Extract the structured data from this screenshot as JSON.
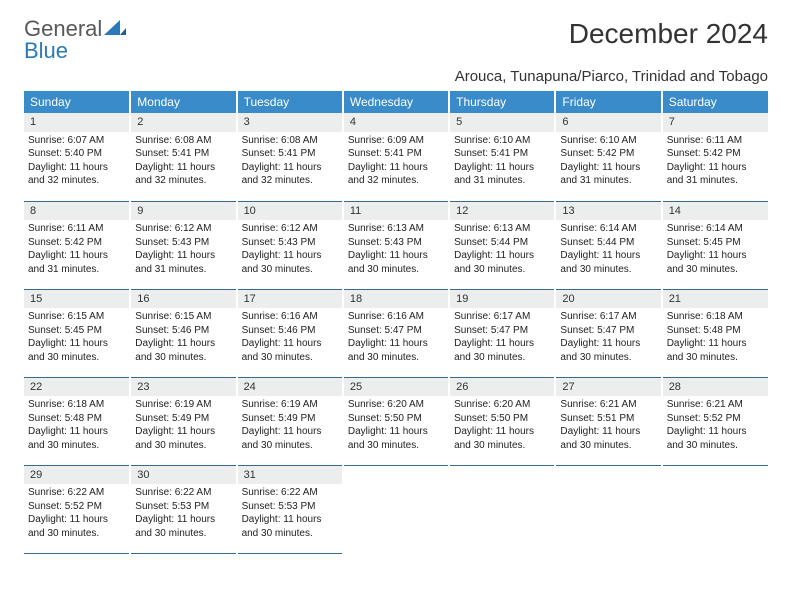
{
  "logo": {
    "word1": "General",
    "word2": "Blue"
  },
  "title": "December 2024",
  "location": "Arouca, Tunapuna/Piarco, Trinidad and Tobago",
  "header_bg": "#3a8bc9",
  "daynum_bg": "#eceded",
  "rule_color": "#3a6a94",
  "weekdays": [
    "Sunday",
    "Monday",
    "Tuesday",
    "Wednesday",
    "Thursday",
    "Friday",
    "Saturday"
  ],
  "days": [
    {
      "n": "1",
      "sunrise": "Sunrise: 6:07 AM",
      "sunset": "Sunset: 5:40 PM",
      "day1": "Daylight: 11 hours",
      "day2": "and 32 minutes."
    },
    {
      "n": "2",
      "sunrise": "Sunrise: 6:08 AM",
      "sunset": "Sunset: 5:41 PM",
      "day1": "Daylight: 11 hours",
      "day2": "and 32 minutes."
    },
    {
      "n": "3",
      "sunrise": "Sunrise: 6:08 AM",
      "sunset": "Sunset: 5:41 PM",
      "day1": "Daylight: 11 hours",
      "day2": "and 32 minutes."
    },
    {
      "n": "4",
      "sunrise": "Sunrise: 6:09 AM",
      "sunset": "Sunset: 5:41 PM",
      "day1": "Daylight: 11 hours",
      "day2": "and 32 minutes."
    },
    {
      "n": "5",
      "sunrise": "Sunrise: 6:10 AM",
      "sunset": "Sunset: 5:41 PM",
      "day1": "Daylight: 11 hours",
      "day2": "and 31 minutes."
    },
    {
      "n": "6",
      "sunrise": "Sunrise: 6:10 AM",
      "sunset": "Sunset: 5:42 PM",
      "day1": "Daylight: 11 hours",
      "day2": "and 31 minutes."
    },
    {
      "n": "7",
      "sunrise": "Sunrise: 6:11 AM",
      "sunset": "Sunset: 5:42 PM",
      "day1": "Daylight: 11 hours",
      "day2": "and 31 minutes."
    },
    {
      "n": "8",
      "sunrise": "Sunrise: 6:11 AM",
      "sunset": "Sunset: 5:42 PM",
      "day1": "Daylight: 11 hours",
      "day2": "and 31 minutes."
    },
    {
      "n": "9",
      "sunrise": "Sunrise: 6:12 AM",
      "sunset": "Sunset: 5:43 PM",
      "day1": "Daylight: 11 hours",
      "day2": "and 31 minutes."
    },
    {
      "n": "10",
      "sunrise": "Sunrise: 6:12 AM",
      "sunset": "Sunset: 5:43 PM",
      "day1": "Daylight: 11 hours",
      "day2": "and 30 minutes."
    },
    {
      "n": "11",
      "sunrise": "Sunrise: 6:13 AM",
      "sunset": "Sunset: 5:43 PM",
      "day1": "Daylight: 11 hours",
      "day2": "and 30 minutes."
    },
    {
      "n": "12",
      "sunrise": "Sunrise: 6:13 AM",
      "sunset": "Sunset: 5:44 PM",
      "day1": "Daylight: 11 hours",
      "day2": "and 30 minutes."
    },
    {
      "n": "13",
      "sunrise": "Sunrise: 6:14 AM",
      "sunset": "Sunset: 5:44 PM",
      "day1": "Daylight: 11 hours",
      "day2": "and 30 minutes."
    },
    {
      "n": "14",
      "sunrise": "Sunrise: 6:14 AM",
      "sunset": "Sunset: 5:45 PM",
      "day1": "Daylight: 11 hours",
      "day2": "and 30 minutes."
    },
    {
      "n": "15",
      "sunrise": "Sunrise: 6:15 AM",
      "sunset": "Sunset: 5:45 PM",
      "day1": "Daylight: 11 hours",
      "day2": "and 30 minutes."
    },
    {
      "n": "16",
      "sunrise": "Sunrise: 6:15 AM",
      "sunset": "Sunset: 5:46 PM",
      "day1": "Daylight: 11 hours",
      "day2": "and 30 minutes."
    },
    {
      "n": "17",
      "sunrise": "Sunrise: 6:16 AM",
      "sunset": "Sunset: 5:46 PM",
      "day1": "Daylight: 11 hours",
      "day2": "and 30 minutes."
    },
    {
      "n": "18",
      "sunrise": "Sunrise: 6:16 AM",
      "sunset": "Sunset: 5:47 PM",
      "day1": "Daylight: 11 hours",
      "day2": "and 30 minutes."
    },
    {
      "n": "19",
      "sunrise": "Sunrise: 6:17 AM",
      "sunset": "Sunset: 5:47 PM",
      "day1": "Daylight: 11 hours",
      "day2": "and 30 minutes."
    },
    {
      "n": "20",
      "sunrise": "Sunrise: 6:17 AM",
      "sunset": "Sunset: 5:47 PM",
      "day1": "Daylight: 11 hours",
      "day2": "and 30 minutes."
    },
    {
      "n": "21",
      "sunrise": "Sunrise: 6:18 AM",
      "sunset": "Sunset: 5:48 PM",
      "day1": "Daylight: 11 hours",
      "day2": "and 30 minutes."
    },
    {
      "n": "22",
      "sunrise": "Sunrise: 6:18 AM",
      "sunset": "Sunset: 5:48 PM",
      "day1": "Daylight: 11 hours",
      "day2": "and 30 minutes."
    },
    {
      "n": "23",
      "sunrise": "Sunrise: 6:19 AM",
      "sunset": "Sunset: 5:49 PM",
      "day1": "Daylight: 11 hours",
      "day2": "and 30 minutes."
    },
    {
      "n": "24",
      "sunrise": "Sunrise: 6:19 AM",
      "sunset": "Sunset: 5:49 PM",
      "day1": "Daylight: 11 hours",
      "day2": "and 30 minutes."
    },
    {
      "n": "25",
      "sunrise": "Sunrise: 6:20 AM",
      "sunset": "Sunset: 5:50 PM",
      "day1": "Daylight: 11 hours",
      "day2": "and 30 minutes."
    },
    {
      "n": "26",
      "sunrise": "Sunrise: 6:20 AM",
      "sunset": "Sunset: 5:50 PM",
      "day1": "Daylight: 11 hours",
      "day2": "and 30 minutes."
    },
    {
      "n": "27",
      "sunrise": "Sunrise: 6:21 AM",
      "sunset": "Sunset: 5:51 PM",
      "day1": "Daylight: 11 hours",
      "day2": "and 30 minutes."
    },
    {
      "n": "28",
      "sunrise": "Sunrise: 6:21 AM",
      "sunset": "Sunset: 5:52 PM",
      "day1": "Daylight: 11 hours",
      "day2": "and 30 minutes."
    },
    {
      "n": "29",
      "sunrise": "Sunrise: 6:22 AM",
      "sunset": "Sunset: 5:52 PM",
      "day1": "Daylight: 11 hours",
      "day2": "and 30 minutes."
    },
    {
      "n": "30",
      "sunrise": "Sunrise: 6:22 AM",
      "sunset": "Sunset: 5:53 PM",
      "day1": "Daylight: 11 hours",
      "day2": "and 30 minutes."
    },
    {
      "n": "31",
      "sunrise": "Sunrise: 6:22 AM",
      "sunset": "Sunset: 5:53 PM",
      "day1": "Daylight: 11 hours",
      "day2": "and 30 minutes."
    }
  ]
}
